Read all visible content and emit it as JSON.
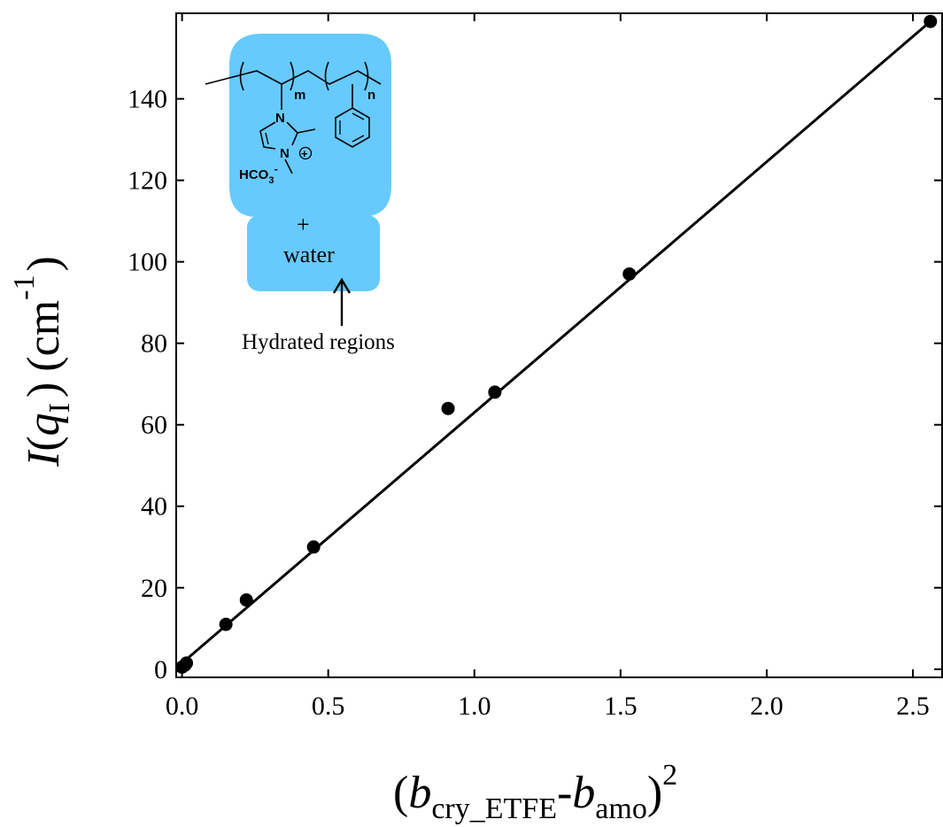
{
  "chart_data": {
    "type": "scatter",
    "title": "",
    "xlabel": {
      "open": "(",
      "b1": "b",
      "sub1": "cry_ETFE",
      "dash": "-",
      "b2": "b",
      "sub2": "amo",
      "close": ")",
      "sup": "2"
    },
    "ylabel": {
      "I": "I",
      "paren_open": "(",
      "q": "q",
      "sub": "I",
      "paren_close": ")",
      "unit": "(cm",
      "sup": "-1",
      "unit_close": ")"
    },
    "xlim": [
      -0.02,
      2.6
    ],
    "ylim": [
      -2,
      161
    ],
    "xticks": [
      0.0,
      0.5,
      1.0,
      1.5,
      2.0,
      2.5
    ],
    "xtick_labels": [
      "0.0",
      "0.5",
      "1.0",
      "1.5",
      "2.0",
      "2.5"
    ],
    "yticks": [
      0,
      20,
      40,
      60,
      80,
      100,
      120,
      140
    ],
    "ytick_labels": [
      "0",
      "20",
      "40",
      "60",
      "80",
      "100",
      "120",
      "140"
    ],
    "grid": false,
    "series": [
      {
        "points": [
          {
            "x": 0.0,
            "y": 0.5
          },
          {
            "x": 0.01,
            "y": 1.0
          },
          {
            "x": 0.015,
            "y": 1.5
          },
          {
            "x": 0.15,
            "y": 11
          },
          {
            "x": 0.22,
            "y": 17
          },
          {
            "x": 0.45,
            "y": 30
          },
          {
            "x": 0.91,
            "y": 64
          },
          {
            "x": 1.07,
            "y": 68
          },
          {
            "x": 1.53,
            "y": 97
          },
          {
            "x": 2.56,
            "y": 159
          }
        ]
      }
    ],
    "fit_line": {
      "x": [
        0.0,
        2.56
      ],
      "y": [
        1.5,
        159
      ]
    },
    "marker_color": "#000000",
    "line_color": "#000000"
  },
  "inset": {
    "highlight_color": "#66CAFF",
    "polymer_subscript_m": "m",
    "polymer_subscript_n": "n",
    "nitrogen_1": "N",
    "nitrogen_2": "N",
    "plus_charge": "+",
    "counter_ion": "HCO",
    "counter_ion_sub": "3",
    "counter_ion_sup": "-",
    "plus": "+",
    "water": "water",
    "annotation": "Hydrated regions"
  }
}
